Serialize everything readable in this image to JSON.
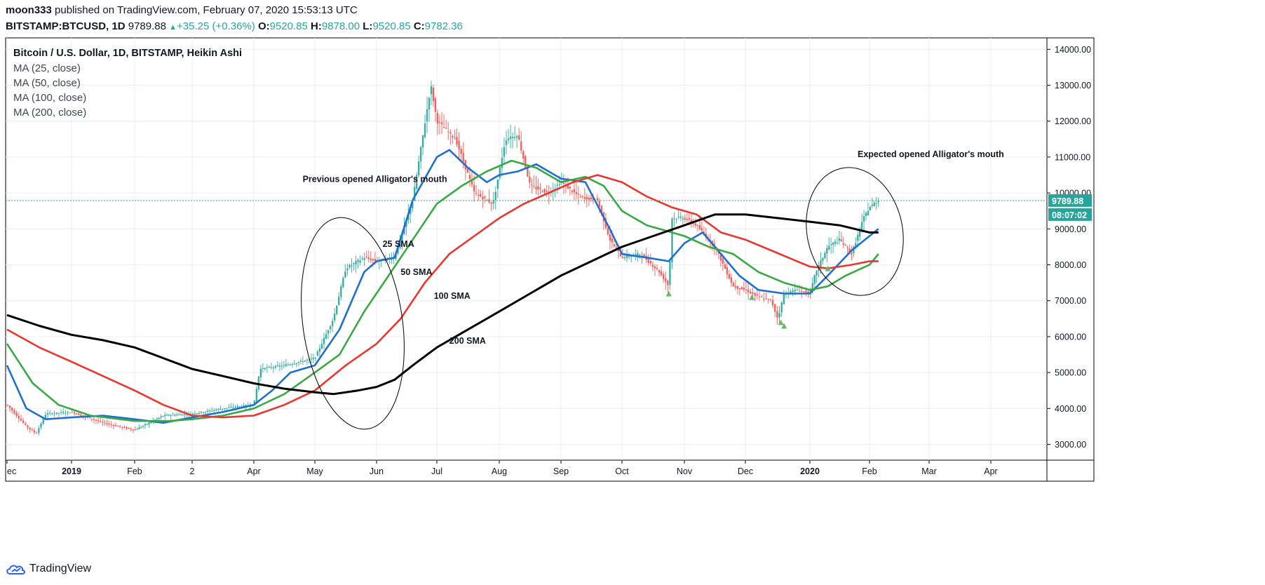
{
  "header": {
    "user": "moon333",
    "published": "published on TradingView.com, February 07, 2020 15:53:13 UTC",
    "symbol": "BITSTAMP:BTCUSD, 1D",
    "last": "9789.88",
    "change_arrow": "▲",
    "change": "+35.25 (+0.36%)",
    "o_label": "O:",
    "o_value": "9520.85",
    "h_label": "H:",
    "h_value": "9878.00",
    "l_label": "L:",
    "l_value": "9520.85",
    "c_label": "C:",
    "c_value": "9782.36"
  },
  "legend": {
    "title": "Bitcoin / U.S. Dollar, 1D, BITSTAMP, Heikin Ashi",
    "ma25": "MA (25, close)",
    "ma50": "MA (50, close)",
    "ma100": "MA (100, close)",
    "ma200": "MA (200, close)"
  },
  "brand": {
    "name": "TradingView"
  },
  "colors": {
    "up": "#26a69a",
    "down": "#ef5350",
    "ma25": "#1e6fd0",
    "ma50": "#3aa845",
    "ma100": "#e8372e",
    "ma200": "#000000",
    "price_tag": "#26a69a"
  },
  "chart_data": {
    "type": "candlestick",
    "title": "Bitcoin / U.S. Dollar, 1D, BITSTAMP, Heikin Ashi",
    "y_range": [
      2500,
      14400
    ],
    "y_ticks": [
      3000,
      4000,
      5000,
      6000,
      7000,
      8000,
      9000,
      10000,
      11000,
      12000,
      13000,
      14000
    ],
    "y_tick_labels": [
      "3000.00",
      "4000.00",
      "5000.00",
      "6000.00",
      "7000.00",
      "8000.00",
      "9000.00",
      "10000.00",
      "11000.00",
      "12000.00",
      "13000.00",
      "14000.00"
    ],
    "x_ticks": [
      {
        "label": "ec",
        "x": 0
      },
      {
        "label": "2019",
        "x": 1,
        "bold": true
      },
      {
        "label": "Feb",
        "x": 2
      },
      {
        "label": "2",
        "x": 3
      },
      {
        "label": "Apr",
        "x": 4
      },
      {
        "label": "May",
        "x": 5
      },
      {
        "label": "Jun",
        "x": 6
      },
      {
        "label": "Jul",
        "x": 7
      },
      {
        "label": "Aug",
        "x": 8
      },
      {
        "label": "Sep",
        "x": 9
      },
      {
        "label": "Oct",
        "x": 10
      },
      {
        "label": "Nov",
        "x": 11
      },
      {
        "label": "Dec",
        "x": 12
      },
      {
        "label": "2020",
        "x": 13,
        "bold": true
      },
      {
        "label": "Feb",
        "x": 14
      },
      {
        "label": "Mar",
        "x": 15
      },
      {
        "label": "Apr",
        "x": 16
      }
    ],
    "price_keypoints": [
      [
        0,
        4100
      ],
      [
        0.3,
        3500
      ],
      [
        0.45,
        3300
      ],
      [
        0.6,
        3850
      ],
      [
        1,
        3900
      ],
      [
        1.5,
        3600
      ],
      [
        2,
        3400
      ],
      [
        2.5,
        3800
      ],
      [
        3,
        3850
      ],
      [
        3.5,
        4000
      ],
      [
        4,
        4100
      ],
      [
        4.1,
        5100
      ],
      [
        4.5,
        5200
      ],
      [
        5,
        5400
      ],
      [
        5.3,
        6500
      ],
      [
        5.5,
        7900
      ],
      [
        5.8,
        8200
      ],
      [
        6,
        8100
      ],
      [
        6.3,
        8200
      ],
      [
        6.6,
        9800
      ],
      [
        6.9,
        13000
      ],
      [
        7,
        12000
      ],
      [
        7.3,
        11500
      ],
      [
        7.6,
        10000
      ],
      [
        7.9,
        9700
      ],
      [
        8.1,
        11500
      ],
      [
        8.3,
        11600
      ],
      [
        8.5,
        10200
      ],
      [
        8.8,
        10000
      ],
      [
        9,
        10300
      ],
      [
        9.3,
        9900
      ],
      [
        9.6,
        9800
      ],
      [
        9.8,
        8700
      ],
      [
        10,
        8200
      ],
      [
        10.3,
        8300
      ],
      [
        10.6,
        7800
      ],
      [
        10.75,
        7400
      ],
      [
        10.8,
        9300
      ],
      [
        11,
        9300
      ],
      [
        11.2,
        9100
      ],
      [
        11.5,
        8500
      ],
      [
        11.8,
        7400
      ],
      [
        12,
        7300
      ],
      [
        12.2,
        7100
      ],
      [
        12.4,
        7000
      ],
      [
        12.5,
        6500
      ],
      [
        12.6,
        7200
      ],
      [
        12.8,
        7300
      ],
      [
        13,
        7200
      ],
      [
        13.1,
        7800
      ],
      [
        13.3,
        8500
      ],
      [
        13.5,
        8700
      ],
      [
        13.7,
        8300
      ],
      [
        13.9,
        9300
      ],
      [
        14,
        9600
      ],
      [
        14.15,
        9800
      ]
    ],
    "series": [
      {
        "name": "MA (25, close)",
        "points": [
          [
            0,
            5200
          ],
          [
            0.3,
            4000
          ],
          [
            0.6,
            3700
          ],
          [
            1,
            3750
          ],
          [
            1.5,
            3800
          ],
          [
            2,
            3700
          ],
          [
            2.5,
            3600
          ],
          [
            3,
            3750
          ],
          [
            3.5,
            3900
          ],
          [
            4,
            4100
          ],
          [
            4.3,
            4500
          ],
          [
            4.6,
            5000
          ],
          [
            5,
            5200
          ],
          [
            5.4,
            6200
          ],
          [
            5.8,
            7800
          ],
          [
            6,
            8100
          ],
          [
            6.3,
            8200
          ],
          [
            6.6,
            9800
          ],
          [
            7,
            11000
          ],
          [
            7.2,
            11200
          ],
          [
            7.5,
            10700
          ],
          [
            7.8,
            10300
          ],
          [
            8,
            10500
          ],
          [
            8.3,
            10600
          ],
          [
            8.6,
            10800
          ],
          [
            9,
            10400
          ],
          [
            9.4,
            10300
          ],
          [
            9.8,
            9000
          ],
          [
            10,
            8300
          ],
          [
            10.4,
            8200
          ],
          [
            10.75,
            8100
          ],
          [
            11,
            8600
          ],
          [
            11.3,
            8900
          ],
          [
            11.6,
            8300
          ],
          [
            11.9,
            7700
          ],
          [
            12.2,
            7300
          ],
          [
            12.6,
            7200
          ],
          [
            13,
            7200
          ],
          [
            13.3,
            7700
          ],
          [
            13.7,
            8400
          ],
          [
            14,
            8800
          ],
          [
            14.15,
            9000
          ]
        ]
      },
      {
        "name": "MA (50, close)",
        "points": [
          [
            0,
            5800
          ],
          [
            0.4,
            4700
          ],
          [
            0.8,
            4100
          ],
          [
            1.3,
            3800
          ],
          [
            2,
            3650
          ],
          [
            2.6,
            3650
          ],
          [
            3,
            3700
          ],
          [
            3.5,
            3800
          ],
          [
            4,
            4000
          ],
          [
            4.5,
            4400
          ],
          [
            5,
            5000
          ],
          [
            5.4,
            5500
          ],
          [
            5.8,
            6700
          ],
          [
            6.2,
            7700
          ],
          [
            6.6,
            8700
          ],
          [
            7,
            9700
          ],
          [
            7.4,
            10200
          ],
          [
            7.8,
            10600
          ],
          [
            8.2,
            10900
          ],
          [
            8.6,
            10700
          ],
          [
            9,
            10300
          ],
          [
            9.4,
            10450
          ],
          [
            9.7,
            10200
          ],
          [
            10,
            9500
          ],
          [
            10.4,
            9100
          ],
          [
            10.8,
            8900
          ],
          [
            11,
            8800
          ],
          [
            11.4,
            8500
          ],
          [
            11.8,
            8300
          ],
          [
            12.2,
            7800
          ],
          [
            12.6,
            7500
          ],
          [
            13,
            7300
          ],
          [
            13.3,
            7400
          ],
          [
            13.6,
            7700
          ],
          [
            14,
            8000
          ],
          [
            14.15,
            8300
          ]
        ]
      },
      {
        "name": "MA (100, close)",
        "points": [
          [
            0,
            6200
          ],
          [
            0.5,
            5700
          ],
          [
            1,
            5300
          ],
          [
            1.5,
            4900
          ],
          [
            2,
            4500
          ],
          [
            2.5,
            4100
          ],
          [
            3,
            3800
          ],
          [
            3.5,
            3750
          ],
          [
            4,
            3800
          ],
          [
            4.5,
            4100
          ],
          [
            5,
            4500
          ],
          [
            5.5,
            5200
          ],
          [
            6,
            5800
          ],
          [
            6.4,
            6500
          ],
          [
            6.8,
            7500
          ],
          [
            7.2,
            8300
          ],
          [
            7.6,
            8800
          ],
          [
            8,
            9300
          ],
          [
            8.4,
            9700
          ],
          [
            8.8,
            10000
          ],
          [
            9.2,
            10300
          ],
          [
            9.6,
            10500
          ],
          [
            10,
            10300
          ],
          [
            10.4,
            9900
          ],
          [
            10.8,
            9600
          ],
          [
            11.2,
            9400
          ],
          [
            11.6,
            8900
          ],
          [
            12,
            8700
          ],
          [
            12.4,
            8400
          ],
          [
            12.8,
            8100
          ],
          [
            13,
            7950
          ],
          [
            13.3,
            7900
          ],
          [
            13.7,
            8000
          ],
          [
            14,
            8100
          ],
          [
            14.15,
            8100
          ]
        ]
      },
      {
        "name": "MA (200, close)",
        "points": [
          [
            0,
            6600
          ],
          [
            0.5,
            6300
          ],
          [
            1,
            6050
          ],
          [
            1.5,
            5900
          ],
          [
            2,
            5700
          ],
          [
            2.5,
            5400
          ],
          [
            3,
            5100
          ],
          [
            3.5,
            4900
          ],
          [
            4,
            4700
          ],
          [
            4.5,
            4550
          ],
          [
            5,
            4450
          ],
          [
            5.3,
            4400
          ],
          [
            5.7,
            4500
          ],
          [
            6,
            4600
          ],
          [
            6.3,
            4800
          ],
          [
            6.6,
            5200
          ],
          [
            7,
            5700
          ],
          [
            7.5,
            6200
          ],
          [
            8,
            6700
          ],
          [
            8.5,
            7200
          ],
          [
            9,
            7700
          ],
          [
            9.5,
            8100
          ],
          [
            10,
            8500
          ],
          [
            10.5,
            8800
          ],
          [
            11,
            9100
          ],
          [
            11.5,
            9400
          ],
          [
            12,
            9400
          ],
          [
            12.5,
            9300
          ],
          [
            13,
            9200
          ],
          [
            13.5,
            9100
          ],
          [
            14,
            8900
          ],
          [
            14.15,
            8900
          ]
        ]
      }
    ],
    "labels": [
      {
        "text": "25 SMA",
        "x": 6.1,
        "y": 8500
      },
      {
        "text": "50 SMA",
        "x": 6.4,
        "y": 7720
      },
      {
        "text": "100 SMA",
        "x": 6.95,
        "y": 7050
      },
      {
        "text": "200 SMA",
        "x": 7.2,
        "y": 5800
      },
      {
        "text": "Previous opened Alligator's mouth",
        "x": 4.8,
        "y": 10300
      },
      {
        "text": "Expected opened Alligator's mouth",
        "x": 13.8,
        "y": 11000
      }
    ],
    "last_price": 9789.88,
    "last_price_label": "9789.88",
    "countdown_label": "08:07:02"
  }
}
